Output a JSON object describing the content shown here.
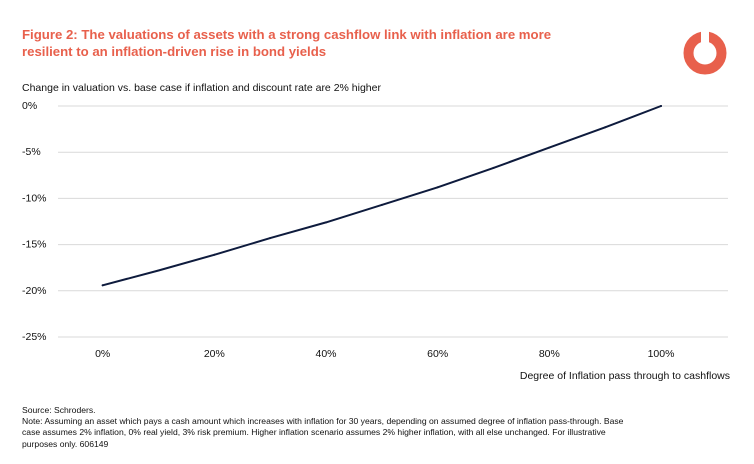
{
  "title": "Figure 2: The valuations of assets with a strong cashflow link with inflation are more resilient to an inflation-driven rise in bond yields",
  "logo": {
    "icon": "schroders-logo-icon",
    "color": "#e8604c"
  },
  "colors": {
    "title": "#e8604c",
    "line": "#0e1b3d",
    "grid": "#d9d9d9"
  },
  "chart_data": {
    "type": "line",
    "title": "Change in valuation vs. base case if inflation and discount rate are 2% higher",
    "xlabel": "Degree of Inflation pass through to cashflows",
    "ylabel": "",
    "x": [
      0,
      10,
      20,
      30,
      40,
      50,
      60,
      70,
      80,
      90,
      100
    ],
    "y_ticks": [
      0,
      -5,
      -10,
      -15,
      -20,
      -25
    ],
    "y_tick_labels": [
      "0%",
      "-5%",
      "-10%",
      "-15%",
      "-20%",
      "-25%"
    ],
    "x_ticks": [
      0,
      20,
      40,
      60,
      80,
      100
    ],
    "x_tick_labels": [
      "0%",
      "20%",
      "40%",
      "60%",
      "80%",
      "100%"
    ],
    "ylim": [
      -25,
      0
    ],
    "xlim": [
      -8,
      112
    ],
    "grid": true,
    "series": [
      {
        "values": [
          -19.4,
          -17.8,
          -16.1,
          -14.3,
          -12.6,
          -10.7,
          -8.8,
          -6.7,
          -4.5,
          -2.3,
          0
        ]
      }
    ]
  },
  "footer": {
    "source": "Source: Schroders.",
    "note": "Note: Assuming an asset which pays a cash amount which increases with inflation for 30 years, depending on assumed degree of inflation pass-through. Base case assumes 2% inflation, 0% real yield, 3% risk premium. Higher inflation scenario assumes 2% higher inflation, with all else unchanged. For illustrative purposes only. 606149"
  }
}
